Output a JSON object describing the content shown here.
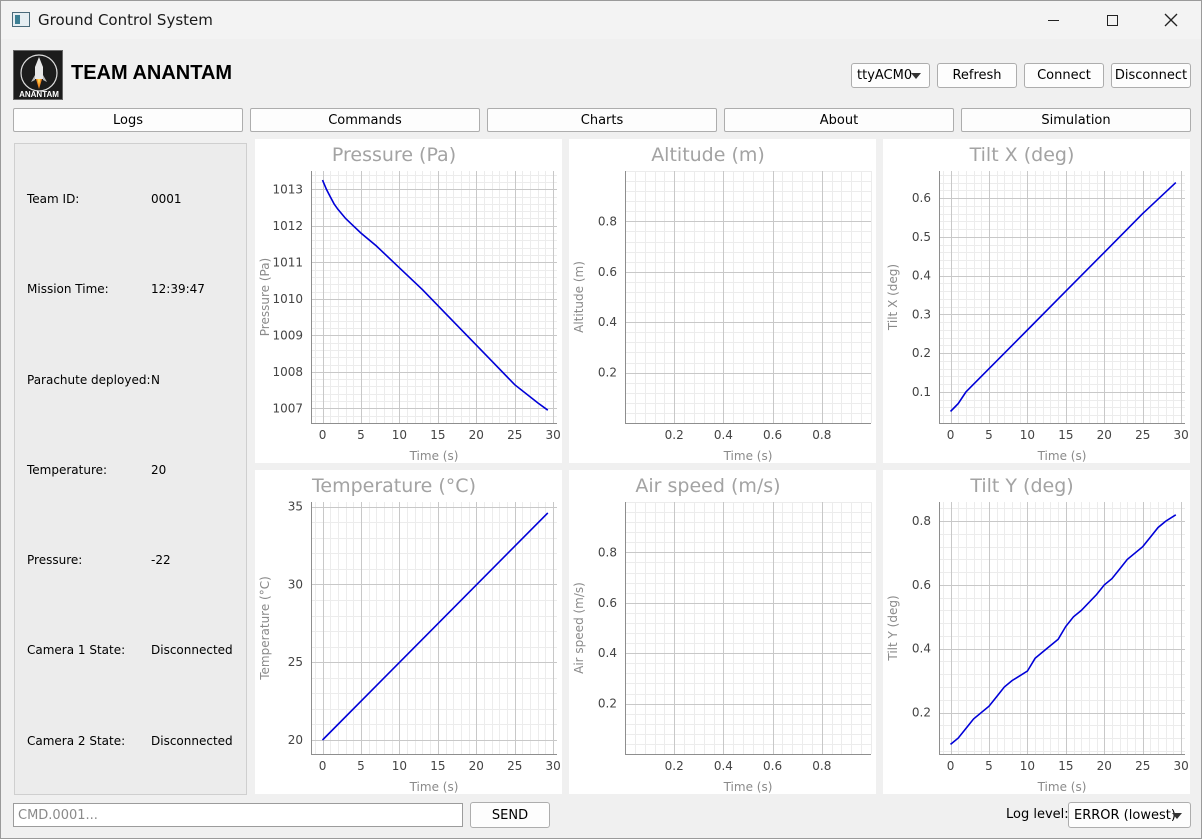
{
  "window": {
    "title": "Ground Control System"
  },
  "header": {
    "team_name": "TEAM ANANTAM",
    "logo_text": "ANANTAM",
    "port_value": "ttyACM0",
    "refresh_label": "Refresh",
    "connect_label": "Connect",
    "disconnect_label": "Disconnect"
  },
  "nav": {
    "logs": "Logs",
    "commands": "Commands",
    "charts": "Charts",
    "about": "About",
    "simulation": "Simulation"
  },
  "status": {
    "rows": [
      {
        "label": "Team ID:",
        "value": "0001"
      },
      {
        "label": "Mission Time:",
        "value": "12:39:47"
      },
      {
        "label": "Parachute deployed:",
        "value": "N"
      },
      {
        "label": "Temperature:",
        "value": "20"
      },
      {
        "label": "Pressure:",
        "value": "-22"
      },
      {
        "label": "Camera 1 State:",
        "value": "Disconnected"
      },
      {
        "label": "Camera 2 State:",
        "value": "Disconnected"
      }
    ]
  },
  "bottom": {
    "cmd_placeholder": "CMD.0001...",
    "send_label": "SEND",
    "loglevel_label": "Log level:",
    "loglevel_value": "ERROR (lowest)"
  },
  "colors": {
    "series": "#0000d8",
    "grid_major": "#c8c8c8",
    "grid_minor": "#ececec"
  },
  "chart_data": [
    {
      "type": "line",
      "title": "Pressure (Pa)",
      "xlabel": "Time (s)",
      "ylabel": "Pressure (Pa)",
      "xlim": [
        -1.5,
        30.5
      ],
      "ylim": [
        1006.6,
        1013.5
      ],
      "xticks": [
        0,
        5,
        10,
        15,
        20,
        25,
        30
      ],
      "yticks": [
        1007,
        1008,
        1009,
        1010,
        1011,
        1012,
        1013
      ],
      "series": [
        {
          "x": [
            0,
            0.5,
            1,
            1.5,
            2,
            3,
            4,
            5,
            7,
            10,
            13,
            16,
            19,
            22,
            25,
            28,
            29.3
          ],
          "y": [
            1013.25,
            1013.0,
            1012.8,
            1012.6,
            1012.45,
            1012.2,
            1012.0,
            1011.8,
            1011.45,
            1010.85,
            1010.25,
            1009.6,
            1008.95,
            1008.3,
            1007.65,
            1007.15,
            1006.95
          ]
        }
      ]
    },
    {
      "type": "line",
      "title": "Altitude (m)",
      "xlabel": "Time (s)",
      "ylabel": "Altitude (m)",
      "xlim": [
        0,
        1
      ],
      "ylim": [
        0,
        1
      ],
      "xticks": [
        0.2,
        0.4,
        0.6,
        0.8
      ],
      "yticks": [
        0.2,
        0.4,
        0.6,
        0.8
      ],
      "series": [
        {
          "x": [],
          "y": []
        }
      ]
    },
    {
      "type": "line",
      "title": "Tilt X (deg)",
      "xlabel": "Time (s)",
      "ylabel": "Tilt X (deg)",
      "xlim": [
        -1.5,
        30.5
      ],
      "ylim": [
        0.02,
        0.67
      ],
      "xticks": [
        0,
        5,
        10,
        15,
        20,
        25,
        30
      ],
      "yticks": [
        0.1,
        0.2,
        0.3,
        0.4,
        0.5,
        0.6
      ],
      "series": [
        {
          "x": [
            0,
            0.5,
            1,
            2,
            3,
            5,
            10,
            15,
            20,
            25,
            29.3
          ],
          "y": [
            0.05,
            0.06,
            0.07,
            0.1,
            0.12,
            0.16,
            0.26,
            0.36,
            0.46,
            0.56,
            0.64
          ]
        }
      ]
    },
    {
      "type": "line",
      "title": "Temperature (°C)",
      "xlabel": "Time (s)",
      "ylabel": "Temperature (°C)",
      "xlim": [
        -1.5,
        30.5
      ],
      "ylim": [
        19.1,
        35.3
      ],
      "xticks": [
        0,
        5,
        10,
        15,
        20,
        25,
        30
      ],
      "yticks": [
        20,
        25,
        30,
        35
      ],
      "series": [
        {
          "x": [
            0,
            29.3
          ],
          "y": [
            20,
            34.6
          ]
        }
      ]
    },
    {
      "type": "line",
      "title": "Air speed (m/s)",
      "xlabel": "Time (s)",
      "ylabel": "Air speed (m/s)",
      "xlim": [
        0,
        1
      ],
      "ylim": [
        0,
        1
      ],
      "xticks": [
        0.2,
        0.4,
        0.6,
        0.8
      ],
      "yticks": [
        0.2,
        0.4,
        0.6,
        0.8
      ],
      "series": [
        {
          "x": [],
          "y": []
        }
      ]
    },
    {
      "type": "line",
      "title": "Tilt Y (deg)",
      "xlabel": "Time (s)",
      "ylabel": "Tilt Y (deg)",
      "xlim": [
        -1.5,
        30.5
      ],
      "ylim": [
        0.07,
        0.86
      ],
      "xticks": [
        0,
        5,
        10,
        15,
        20,
        25,
        30
      ],
      "yticks": [
        0.2,
        0.4,
        0.6,
        0.8
      ],
      "series": [
        {
          "x": [
            0,
            1,
            2,
            3,
            5,
            6,
            7,
            8,
            10,
            11,
            12,
            14,
            15,
            16,
            17,
            19,
            20,
            21,
            22,
            23,
            25,
            26,
            27,
            28,
            29.3
          ],
          "y": [
            0.1,
            0.12,
            0.15,
            0.18,
            0.22,
            0.25,
            0.28,
            0.3,
            0.33,
            0.37,
            0.39,
            0.43,
            0.47,
            0.5,
            0.52,
            0.57,
            0.6,
            0.62,
            0.65,
            0.68,
            0.72,
            0.75,
            0.78,
            0.8,
            0.82
          ]
        }
      ]
    }
  ]
}
